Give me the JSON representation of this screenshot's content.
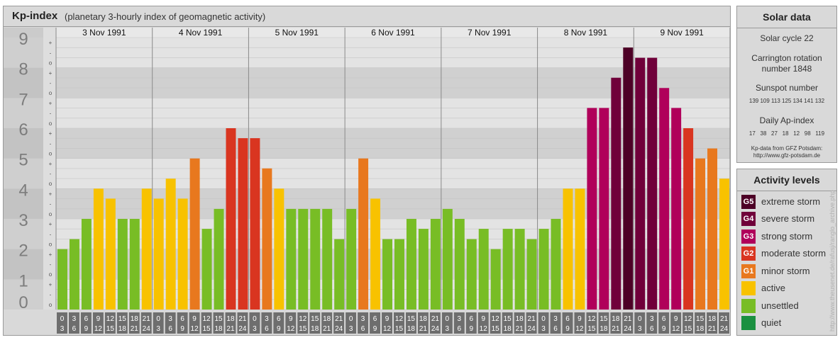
{
  "page": {
    "title": "Kp-index",
    "subtitle": "(planetary 3-hourly index of geomagnetic activity)",
    "credit": "http://www.theusenet.de/rafusj/ranglo_archive.php"
  },
  "solar_data": {
    "title": "Solar data",
    "cycle": "Solar cycle 22",
    "carrington_line1": "Carrington rotation",
    "carrington_line2": "number 1848",
    "sunspot_label": "Sunspot number",
    "sunspot_values": "139 109 113 125 134 141 132",
    "ap_label": "Daily Ap-index",
    "ap_values": "17   38   27   18   12   98   119",
    "source_line1": "Kp-data from GFZ Potsdam:",
    "source_line2": "http://www.gfz-potsdam.de"
  },
  "legend": {
    "title": "Activity levels",
    "items": [
      {
        "code": "G5",
        "label": "extreme storm",
        "color": "#4d0026"
      },
      {
        "code": "G4",
        "label": "severe storm",
        "color": "#70003a"
      },
      {
        "code": "G3",
        "label": "strong storm",
        "color": "#b0005a"
      },
      {
        "code": "G2",
        "label": "moderate storm",
        "color": "#d93520"
      },
      {
        "code": "G1",
        "label": "minor storm",
        "color": "#e8781e"
      },
      {
        "code": "",
        "label": "active",
        "color": "#f8c200"
      },
      {
        "code": "",
        "label": "unsettled",
        "color": "#78bd25"
      },
      {
        "code": "",
        "label": "quiet",
        "color": "#1a9040"
      }
    ]
  },
  "chart_data": {
    "type": "bar",
    "title": "Kp-index",
    "ylim": [
      0,
      9
    ],
    "y_ticks": [
      "0",
      "1",
      "2",
      "3",
      "4",
      "5",
      "6",
      "7",
      "8",
      "9"
    ],
    "sub_ticks": [
      "o",
      "-",
      "+"
    ],
    "days": [
      "3 Nov 1991",
      "4 Nov 1991",
      "5 Nov 1991",
      "6 Nov 1991",
      "7 Nov 1991",
      "8 Nov 1991",
      "9 Nov 1991"
    ],
    "hour_top": [
      "0",
      "3",
      "6",
      "9",
      "12",
      "15",
      "18",
      "21"
    ],
    "hour_bottom": [
      "3",
      "6",
      "9",
      "12",
      "15",
      "18",
      "21",
      "24"
    ],
    "values": [
      2.0,
      2.33,
      3.0,
      4.0,
      3.67,
      3.0,
      3.0,
      4.0,
      3.67,
      4.33,
      3.67,
      5.0,
      2.67,
      3.33,
      6.0,
      5.67,
      5.67,
      4.67,
      4.0,
      3.33,
      3.33,
      3.33,
      3.33,
      2.33,
      3.33,
      5.0,
      3.67,
      2.33,
      2.33,
      3.0,
      2.67,
      3.0,
      3.33,
      3.0,
      2.33,
      2.67,
      2.0,
      2.67,
      2.67,
      2.33,
      2.67,
      3.0,
      4.0,
      4.0,
      6.67,
      6.67,
      7.67,
      8.67,
      8.33,
      8.33,
      7.33,
      6.67,
      6.0,
      5.0,
      5.33,
      4.33
    ],
    "colors": {
      "quiet": "#1a9040",
      "unsettled": "#78bd25",
      "active": "#f8c200",
      "g1": "#e8781e",
      "g2": "#d93520",
      "g3": "#b0005a",
      "g4": "#70003a",
      "g5": "#4d0026"
    }
  }
}
